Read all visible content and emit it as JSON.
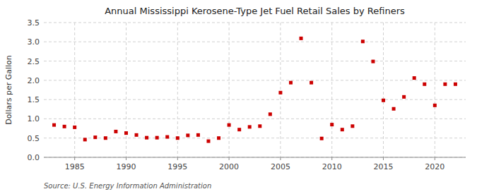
{
  "chart_data": {
    "type": "scatter",
    "title": "Annual Mississippi Kerosene-Type Jet Fuel Retail Sales by Refiners",
    "ylabel": "Dollars per Gallon",
    "annotation": "Source: U.S. Energy Information Administration",
    "x": [
      1983,
      1984,
      1985,
      1986,
      1987,
      1988,
      1989,
      1990,
      1991,
      1992,
      1993,
      1994,
      1995,
      1996,
      1997,
      1998,
      1999,
      2000,
      2001,
      2002,
      2003,
      2004,
      2005,
      2006,
      2007,
      2008,
      2009,
      2010,
      2011,
      2012,
      2013,
      2014,
      2015,
      2016,
      2017,
      2018,
      2019,
      2020,
      2021,
      2022
    ],
    "values": [
      0.84,
      0.8,
      0.78,
      0.46,
      0.52,
      0.5,
      0.67,
      0.63,
      0.58,
      0.51,
      0.51,
      0.53,
      0.5,
      0.57,
      0.58,
      0.42,
      0.5,
      0.84,
      0.72,
      0.79,
      0.81,
      1.12,
      1.68,
      1.94,
      3.09,
      1.94,
      0.49,
      0.85,
      0.72,
      0.81,
      3.01,
      2.49,
      1.48,
      1.26,
      1.57,
      2.06,
      1.9,
      1.35,
      1.9,
      1.9
    ],
    "color": "#cc0000",
    "marker": "square",
    "xlim": [
      1982,
      2023
    ],
    "ylim": [
      0.0,
      3.5
    ],
    "xticks": [
      1985,
      1990,
      1995,
      2000,
      2005,
      2010,
      2015,
      2020
    ],
    "yticks": [
      {
        "value": 0.0,
        "label": "0.0"
      },
      0.5,
      {
        "value": 1.0,
        "label": "1.0"
      },
      1.5,
      {
        "value": 2.0,
        "label": "2.0"
      },
      2.5,
      {
        "value": 3.0,
        "label": "3.0"
      },
      3.5
    ],
    "grid": true
  }
}
